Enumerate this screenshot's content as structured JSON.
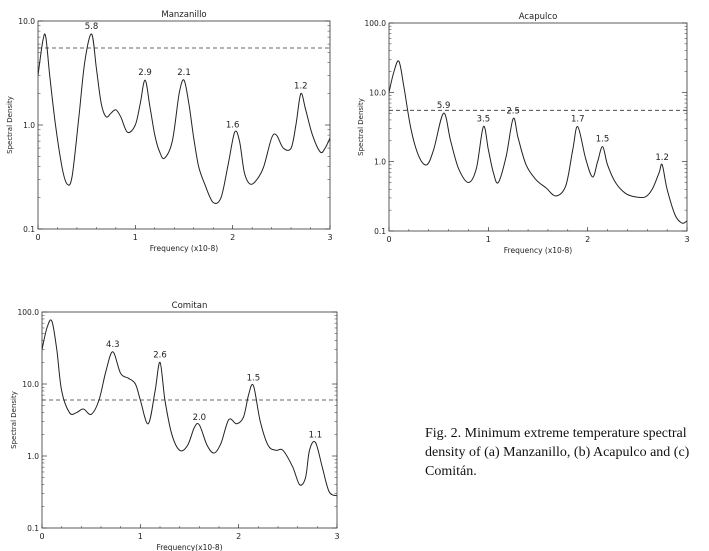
{
  "caption": "Fig. 2. Minimum extreme temperature spectral density of (a) Manzanillo, (b) Acapulco and (c) Comitán.",
  "chart_data": [
    {
      "type": "line",
      "title": "Manzanillo",
      "xlabel": "Frequency (x10-8)",
      "ylabel": "Spectral Density",
      "xlim": [
        0,
        3
      ],
      "ylim": [
        0.1,
        10.0
      ],
      "yscale": "log",
      "xticks": [
        "0",
        "1",
        "2",
        "3"
      ],
      "yticks": [
        "0.1",
        "1.0",
        "10.0"
      ],
      "threshold": 5.5,
      "x": [
        0,
        0.05,
        0.08,
        0.12,
        0.18,
        0.25,
        0.3,
        0.35,
        0.42,
        0.48,
        0.55,
        0.6,
        0.65,
        0.7,
        0.75,
        0.8,
        0.85,
        0.92,
        1.0,
        1.05,
        1.1,
        1.15,
        1.2,
        1.25,
        1.3,
        1.38,
        1.45,
        1.5,
        1.55,
        1.6,
        1.65,
        1.72,
        1.8,
        1.88,
        1.95,
        2.02,
        2.07,
        2.12,
        2.18,
        2.25,
        2.32,
        2.4,
        2.45,
        2.52,
        2.6,
        2.65,
        2.7,
        2.75,
        2.82,
        2.9,
        2.95,
        3.0
      ],
      "values": [
        3.0,
        6.5,
        7.0,
        3.0,
        1.0,
        0.38,
        0.27,
        0.32,
        1.2,
        4.0,
        7.5,
        3.5,
        1.6,
        1.2,
        1.3,
        1.4,
        1.2,
        0.85,
        1.0,
        1.6,
        2.7,
        1.5,
        0.8,
        0.55,
        0.48,
        0.7,
        2.0,
        2.7,
        1.6,
        0.75,
        0.4,
        0.26,
        0.18,
        0.2,
        0.4,
        0.85,
        0.7,
        0.35,
        0.27,
        0.3,
        0.4,
        0.75,
        0.8,
        0.6,
        0.6,
        1.0,
        2.0,
        1.4,
        0.8,
        0.55,
        0.6,
        0.75
      ],
      "peak_labels": [
        {
          "x": 0.55,
          "y": 7.5,
          "text": "5.8"
        },
        {
          "x": 1.1,
          "y": 2.7,
          "text": "2.9"
        },
        {
          "x": 1.5,
          "y": 2.7,
          "text": "2.1"
        },
        {
          "x": 2.0,
          "y": 0.85,
          "text": "1.6"
        },
        {
          "x": 2.7,
          "y": 2.0,
          "text": "1.2"
        }
      ]
    },
    {
      "type": "line",
      "title": "Acapulco",
      "xlabel": "Frequency (x10-8)",
      "ylabel": "Spectral Density",
      "xlim": [
        0,
        3
      ],
      "ylim": [
        0.1,
        100.0
      ],
      "yscale": "log",
      "xticks": [
        "0",
        "1",
        "2",
        "3"
      ],
      "yticks": [
        "0.1",
        "1.0",
        "10.0",
        "100.0"
      ],
      "threshold": 5.5,
      "x": [
        0,
        0.05,
        0.1,
        0.15,
        0.22,
        0.3,
        0.38,
        0.45,
        0.55,
        0.62,
        0.7,
        0.8,
        0.88,
        0.95,
        1.0,
        1.05,
        1.1,
        1.18,
        1.25,
        1.3,
        1.38,
        1.48,
        1.58,
        1.68,
        1.78,
        1.85,
        1.9,
        1.98,
        2.05,
        2.1,
        2.15,
        2.2,
        2.28,
        2.38,
        2.48,
        2.58,
        2.65,
        2.72,
        2.75,
        2.8,
        2.88,
        2.95,
        3.0
      ],
      "values": [
        10.0,
        20.0,
        28.0,
        12.0,
        3.0,
        1.2,
        0.9,
        1.5,
        5.0,
        2.0,
        0.8,
        0.5,
        0.8,
        3.2,
        1.5,
        0.7,
        0.5,
        1.2,
        4.2,
        2.2,
        0.9,
        0.55,
        0.42,
        0.32,
        0.45,
        1.5,
        3.2,
        1.1,
        0.6,
        1.0,
        1.65,
        0.9,
        0.5,
        0.35,
        0.31,
        0.31,
        0.4,
        0.7,
        0.9,
        0.4,
        0.17,
        0.13,
        0.14
      ],
      "peak_labels": [
        {
          "x": 0.55,
          "y": 5.0,
          "text": "5.9"
        },
        {
          "x": 0.95,
          "y": 3.2,
          "text": "3.5"
        },
        {
          "x": 1.25,
          "y": 4.2,
          "text": "2.5"
        },
        {
          "x": 1.9,
          "y": 3.2,
          "text": "1.7"
        },
        {
          "x": 2.15,
          "y": 1.65,
          "text": "1.5"
        },
        {
          "x": 2.75,
          "y": 0.9,
          "text": "1.2"
        }
      ]
    },
    {
      "type": "line",
      "title": "Comitan",
      "xlabel": "Frequency(x10-8)",
      "ylabel": "Spectral Density",
      "xlim": [
        0,
        3
      ],
      "ylim": [
        0.1,
        100.0
      ],
      "yscale": "log",
      "xticks": [
        "0",
        "1",
        "2",
        "3"
      ],
      "yticks": [
        "0.1",
        "1.0",
        "10.0",
        "100.0"
      ],
      "threshold": 6.0,
      "x": [
        0,
        0.05,
        0.1,
        0.15,
        0.2,
        0.28,
        0.35,
        0.42,
        0.5,
        0.58,
        0.65,
        0.72,
        0.8,
        0.88,
        0.95,
        1.0,
        1.08,
        1.15,
        1.2,
        1.25,
        1.32,
        1.4,
        1.48,
        1.55,
        1.6,
        1.68,
        1.75,
        1.82,
        1.9,
        1.98,
        2.05,
        2.1,
        2.15,
        2.22,
        2.3,
        2.38,
        2.45,
        2.55,
        2.62,
        2.68,
        2.72,
        2.78,
        2.85,
        2.92,
        3.0
      ],
      "values": [
        30.0,
        60.0,
        75.0,
        30.0,
        8.0,
        4.0,
        4.0,
        4.5,
        3.8,
        6.0,
        15.0,
        28.0,
        14.0,
        12.0,
        10.0,
        6.0,
        2.8,
        8.0,
        20.0,
        6.0,
        2.0,
        1.2,
        1.4,
        2.5,
        2.7,
        1.4,
        1.1,
        1.5,
        3.2,
        2.8,
        3.5,
        7.0,
        9.5,
        3.0,
        1.4,
        1.2,
        1.2,
        0.7,
        0.4,
        0.5,
        1.2,
        1.55,
        0.7,
        0.32,
        0.28
      ],
      "peak_labels": [
        {
          "x": 0.72,
          "y": 28.0,
          "text": "4.3"
        },
        {
          "x": 1.2,
          "y": 20.0,
          "text": "2.6"
        },
        {
          "x": 1.6,
          "y": 2.7,
          "text": "2.0"
        },
        {
          "x": 2.15,
          "y": 9.5,
          "text": "1.5"
        },
        {
          "x": 2.78,
          "y": 1.55,
          "text": "1.1"
        }
      ]
    }
  ]
}
